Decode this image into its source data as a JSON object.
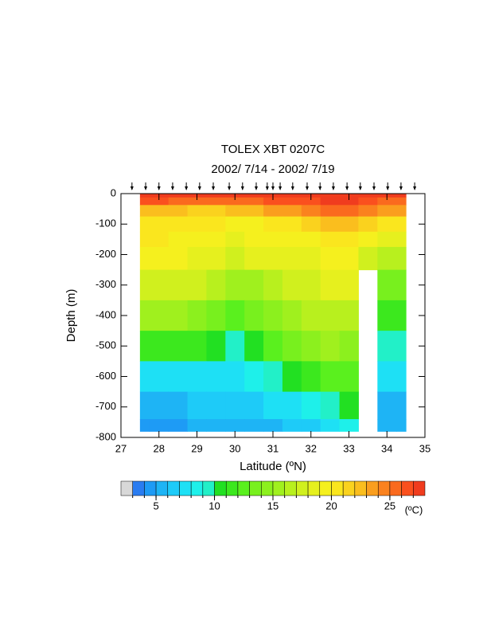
{
  "chart_data": {
    "type": "contour",
    "title": "TOLEX XBT 0207C",
    "subtitle": "2002/ 7/14 - 2002/ 7/19",
    "x_label": "Latitude (ºN)",
    "y_label": "Depth (m)",
    "xlim": [
      27,
      35
    ],
    "xticks": [
      27,
      28,
      29,
      30,
      31,
      32,
      33,
      34,
      35
    ],
    "ylim": [
      0,
      -800
    ],
    "yticks": [
      0,
      -100,
      -200,
      -300,
      -400,
      -500,
      -600,
      -700,
      -800
    ],
    "stations": [
      27.29,
      27.65,
      28.0,
      28.36,
      28.72,
      29.07,
      29.43,
      29.85,
      30.2,
      30.56,
      30.85,
      31.0,
      31.19,
      31.52,
      31.9,
      32.24,
      32.59,
      32.95,
      33.3,
      33.66,
      34.02,
      34.37,
      34.73
    ],
    "x": [
      27.5,
      28,
      28.5,
      29,
      29.5,
      30,
      30.5,
      31,
      31.5,
      32,
      32.5,
      33,
      33.5,
      34,
      34.5
    ],
    "y": [
      0,
      -25,
      -50,
      -100,
      -150,
      -200,
      -300,
      -400,
      -500,
      -600,
      -700,
      -780
    ],
    "z": [
      [
        28,
        28,
        28,
        28,
        28,
        28,
        28,
        28,
        28,
        28,
        28,
        28,
        27.5,
        27.5,
        28
      ],
      [
        26,
        26,
        25.5,
        25.5,
        25.5,
        25,
        25.5,
        26,
        26,
        26.5,
        27,
        27,
        26,
        25,
        25
      ],
      [
        22,
        22,
        22,
        21.5,
        21.5,
        22,
        22.5,
        23,
        23,
        24,
        25,
        25,
        24,
        23,
        23
      ],
      [
        20.5,
        20.5,
        20.3,
        20.2,
        20,
        19.5,
        19.8,
        20,
        20,
        21,
        22,
        22,
        21,
        20,
        20
      ],
      [
        20,
        20,
        19.8,
        19.5,
        19.3,
        18.5,
        19,
        19.2,
        19.3,
        19.5,
        20,
        20,
        19,
        18,
        18
      ],
      [
        19.3,
        19.2,
        19,
        18.8,
        18.5,
        17.5,
        18,
        18.3,
        18.5,
        18.8,
        19.2,
        19.5,
        17,
        16,
        16
      ],
      [
        17.5,
        17.5,
        17.3,
        17,
        16,
        15,
        15.8,
        16.5,
        17,
        17.5,
        18,
        18,
        null,
        13,
        13
      ],
      [
        15.5,
        15.5,
        15,
        14.5,
        13,
        12,
        13,
        14,
        15,
        16,
        16.5,
        16.5,
        null,
        11,
        11
      ],
      [
        11,
        11,
        11,
        11,
        10,
        9,
        10.5,
        12,
        13,
        14,
        15,
        14,
        null,
        9,
        9
      ],
      [
        7.5,
        7,
        7,
        7.5,
        7.5,
        7,
        8,
        9,
        10,
        11,
        12,
        12,
        null,
        7,
        7
      ],
      [
        5,
        5,
        5.5,
        6,
        6,
        6,
        6.5,
        7,
        7.5,
        8,
        9,
        10,
        null,
        5.5,
        5.5
      ],
      [
        4,
        4,
        4.5,
        5,
        5,
        5.5,
        5,
        5.5,
        6,
        6.5,
        7.5,
        8,
        null,
        5,
        5
      ]
    ],
    "levels": [
      3,
      4,
      5,
      6,
      7,
      8,
      9,
      10,
      11,
      12,
      13,
      14,
      15,
      16,
      17,
      18,
      19,
      20,
      21,
      22,
      23,
      24,
      25,
      26,
      27
    ],
    "colors": [
      "#d8d8d8",
      "#2a7cf0",
      "#1e9bf5",
      "#1eb4f5",
      "#1ecbf8",
      "#1ee0f5",
      "#1ef0ea",
      "#22f0c8",
      "#22e022",
      "#3ce81e",
      "#5af01e",
      "#78f01e",
      "#8cf01e",
      "#a0f01e",
      "#b8f01e",
      "#d0f01e",
      "#e6f01e",
      "#f5f01e",
      "#fae61e",
      "#fad21e",
      "#fabe1e",
      "#fa9e1e",
      "#fa821e",
      "#fa6a1e",
      "#fa501e",
      "#f03c1e"
    ],
    "colorbar_ticks": [
      5,
      10,
      15,
      20,
      25
    ],
    "colorbar_unit": "(ºC)"
  }
}
